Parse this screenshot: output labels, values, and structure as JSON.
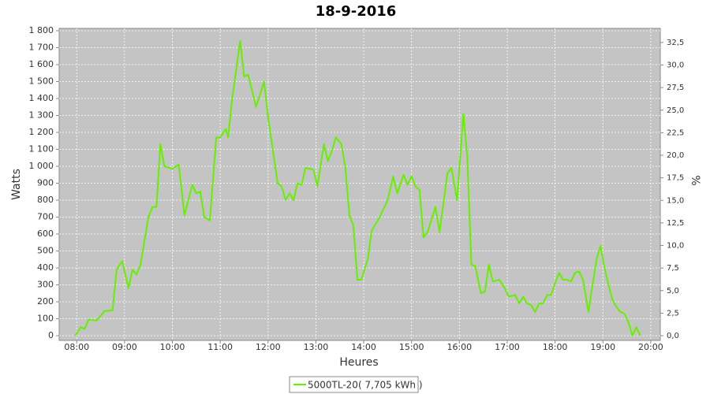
{
  "chart_data": {
    "type": "line",
    "title": "18-9-2016",
    "x_label": "Heures",
    "y_label": "Watts",
    "y2_label": "%",
    "x": [
      "07:58",
      "08:05",
      "08:10",
      "08:15",
      "08:25",
      "08:35",
      "08:45",
      "08:50",
      "08:57",
      "09:05",
      "09:10",
      "09:15",
      "09:20",
      "09:30",
      "09:35",
      "09:40",
      "09:45",
      "09:50",
      "10:00",
      "10:08",
      "10:15",
      "10:25",
      "10:30",
      "10:35",
      "10:40",
      "10:47",
      "10:55",
      "11:00",
      "11:07",
      "11:10",
      "11:15",
      "11:25",
      "11:30",
      "11:35",
      "11:45",
      "11:55",
      "12:00",
      "12:05",
      "12:12",
      "12:17",
      "12:22",
      "12:27",
      "12:32",
      "12:37",
      "12:42",
      "12:47",
      "12:57",
      "13:02",
      "13:10",
      "13:15",
      "13:20",
      "13:25",
      "13:32",
      "13:37",
      "13:42",
      "13:47",
      "13:52",
      "13:57",
      "14:05",
      "14:10",
      "14:15",
      "14:20",
      "14:30",
      "14:37",
      "14:42",
      "14:50",
      "14:55",
      "15:00",
      "15:05",
      "15:10",
      "15:15",
      "15:20",
      "15:30",
      "15:35",
      "15:45",
      "15:50",
      "15:57",
      "16:05",
      "16:10",
      "16:15",
      "16:20",
      "16:27",
      "16:32",
      "16:37",
      "16:42",
      "16:50",
      "16:57",
      "17:02",
      "17:10",
      "17:15",
      "17:20",
      "17:25",
      "17:30",
      "17:35",
      "17:40",
      "17:45",
      "17:50",
      "17:55",
      "18:00",
      "18:05",
      "18:10",
      "18:15",
      "18:20",
      "18:25",
      "18:30",
      "18:35",
      "18:42",
      "18:47",
      "18:52",
      "18:57",
      "19:02",
      "19:07",
      "19:12",
      "19:17",
      "19:22",
      "19:27",
      "19:32",
      "19:37",
      "19:42",
      "19:47"
    ],
    "series": [
      {
        "name": "5000TL-20( 7,705 kWh )",
        "color": "#66f000",
        "values": [
          0,
          50,
          40,
          95,
          90,
          145,
          150,
          390,
          440,
          280,
          390,
          360,
          420,
          700,
          760,
          760,
          1130,
          1000,
          985,
          1010,
          710,
          890,
          840,
          850,
          700,
          680,
          1170,
          1170,
          1220,
          1170,
          1400,
          1740,
          1530,
          1540,
          1350,
          1500,
          1290,
          1130,
          900,
          880,
          800,
          840,
          800,
          900,
          890,
          990,
          980,
          880,
          1130,
          1030,
          1090,
          1170,
          1130,
          990,
          710,
          650,
          330,
          330,
          450,
          620,
          660,
          700,
          800,
          940,
          840,
          950,
          890,
          940,
          880,
          860,
          580,
          610,
          760,
          610,
          960,
          990,
          800,
          1310,
          1050,
          420,
          410,
          250,
          260,
          420,
          320,
          330,
          280,
          230,
          240,
          190,
          230,
          190,
          180,
          140,
          190,
          190,
          240,
          240,
          310,
          370,
          330,
          330,
          320,
          370,
          380,
          330,
          140,
          300,
          450,
          530,
          400,
          300,
          210,
          170,
          140,
          130,
          80,
          0,
          50,
          0
        ]
      }
    ],
    "xlim": [
      "07:38",
      "20:12"
    ],
    "xticks": [
      "08:00",
      "09:00",
      "10:00",
      "11:00",
      "12:00",
      "13:00",
      "14:00",
      "15:00",
      "16:00",
      "17:00",
      "18:00",
      "19:00",
      "20:00"
    ],
    "ylim": [
      -28,
      1814
    ],
    "yticks": [
      0,
      100,
      200,
      300,
      400,
      500,
      600,
      700,
      800,
      900,
      {
        "value": 1000,
        "label": "1 000"
      },
      {
        "value": 1100,
        "label": "1 100"
      },
      {
        "value": 1200,
        "label": "1 200"
      },
      {
        "value": 1300,
        "label": "1 300"
      },
      {
        "value": 1400,
        "label": "1 400"
      },
      {
        "value": 1500,
        "label": "1 500"
      },
      {
        "value": 1600,
        "label": "1 600"
      },
      {
        "value": 1700,
        "label": "1 700"
      },
      {
        "value": 1800,
        "label": "1 800"
      }
    ],
    "y2lim": [
      -0.52,
      34.06
    ],
    "y2ticks": [
      {
        "value": 0,
        "label": "0,0"
      },
      {
        "value": 2.5,
        "label": "2,5"
      },
      {
        "value": 5,
        "label": "5,0"
      },
      {
        "value": 7.5,
        "label": "7,5"
      },
      {
        "value": 10,
        "label": "10,0"
      },
      {
        "value": 12.5,
        "label": "12,5"
      },
      {
        "value": 15,
        "label": "15,0"
      },
      {
        "value": 17.5,
        "label": "17,5"
      },
      {
        "value": 20,
        "label": "20,0"
      },
      {
        "value": 22.5,
        "label": "22,5"
      },
      {
        "value": 25,
        "label": "25,0"
      },
      {
        "value": 27.5,
        "label": "27,5"
      },
      {
        "value": 30,
        "label": "30,0"
      },
      {
        "value": 32.5,
        "label": "32,5"
      }
    ],
    "grid": true
  }
}
